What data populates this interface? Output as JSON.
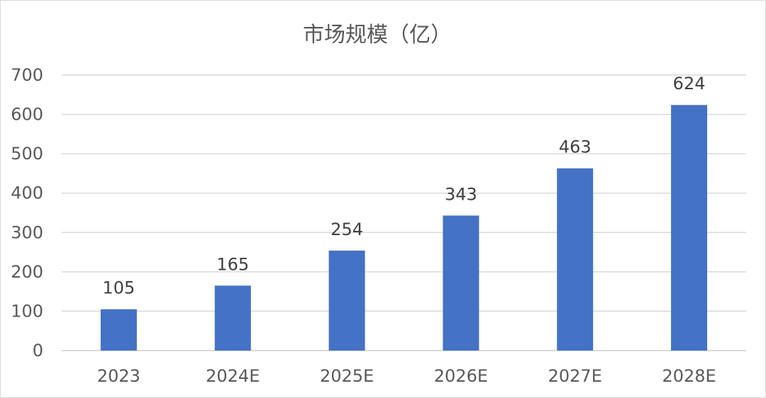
{
  "chart_data": {
    "type": "bar",
    "title": "市场规模（亿）",
    "categories": [
      "2023",
      "2024E",
      "2025E",
      "2026E",
      "2027E",
      "2028E"
    ],
    "values": [
      105,
      165,
      254,
      343,
      463,
      624
    ],
    "data_labels": [
      "105",
      "165",
      "254",
      "343",
      "463",
      "624"
    ],
    "ylim": [
      0,
      700
    ],
    "yticks": [
      0,
      100,
      200,
      300,
      400,
      500,
      600,
      700
    ],
    "ytick_labels": [
      "0",
      "100",
      "200",
      "300",
      "400",
      "500",
      "600",
      "700"
    ],
    "grid": true,
    "legend": "none",
    "bar_color": "#4472C4"
  }
}
